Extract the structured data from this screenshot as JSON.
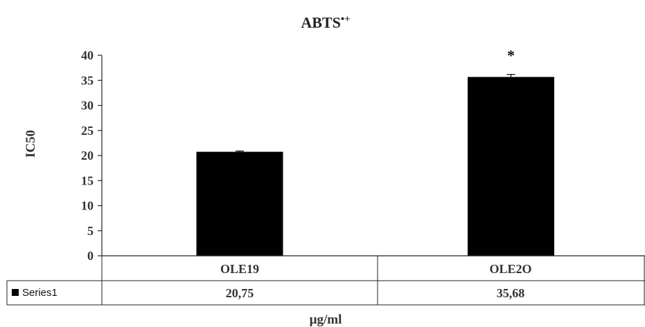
{
  "chart_data": {
    "type": "bar",
    "title": "ABTS",
    "title_superscript": "•+",
    "ylabel": "IC50",
    "xlabel": "µg/ml",
    "ylim": [
      0,
      40
    ],
    "yticks": [
      0,
      5,
      10,
      15,
      20,
      25,
      30,
      35,
      40
    ],
    "categories": [
      "OLE19",
      "OLE2O"
    ],
    "series": [
      {
        "name": "Series1",
        "values": [
          20.75,
          35.68
        ],
        "error": [
          0.15,
          0.5
        ],
        "color": "#000000"
      }
    ],
    "table_values": [
      "20,75",
      "35,68"
    ],
    "annotations": [
      {
        "category": "OLE2O",
        "text": "*"
      }
    ],
    "grid": false,
    "legend": "data-table"
  }
}
